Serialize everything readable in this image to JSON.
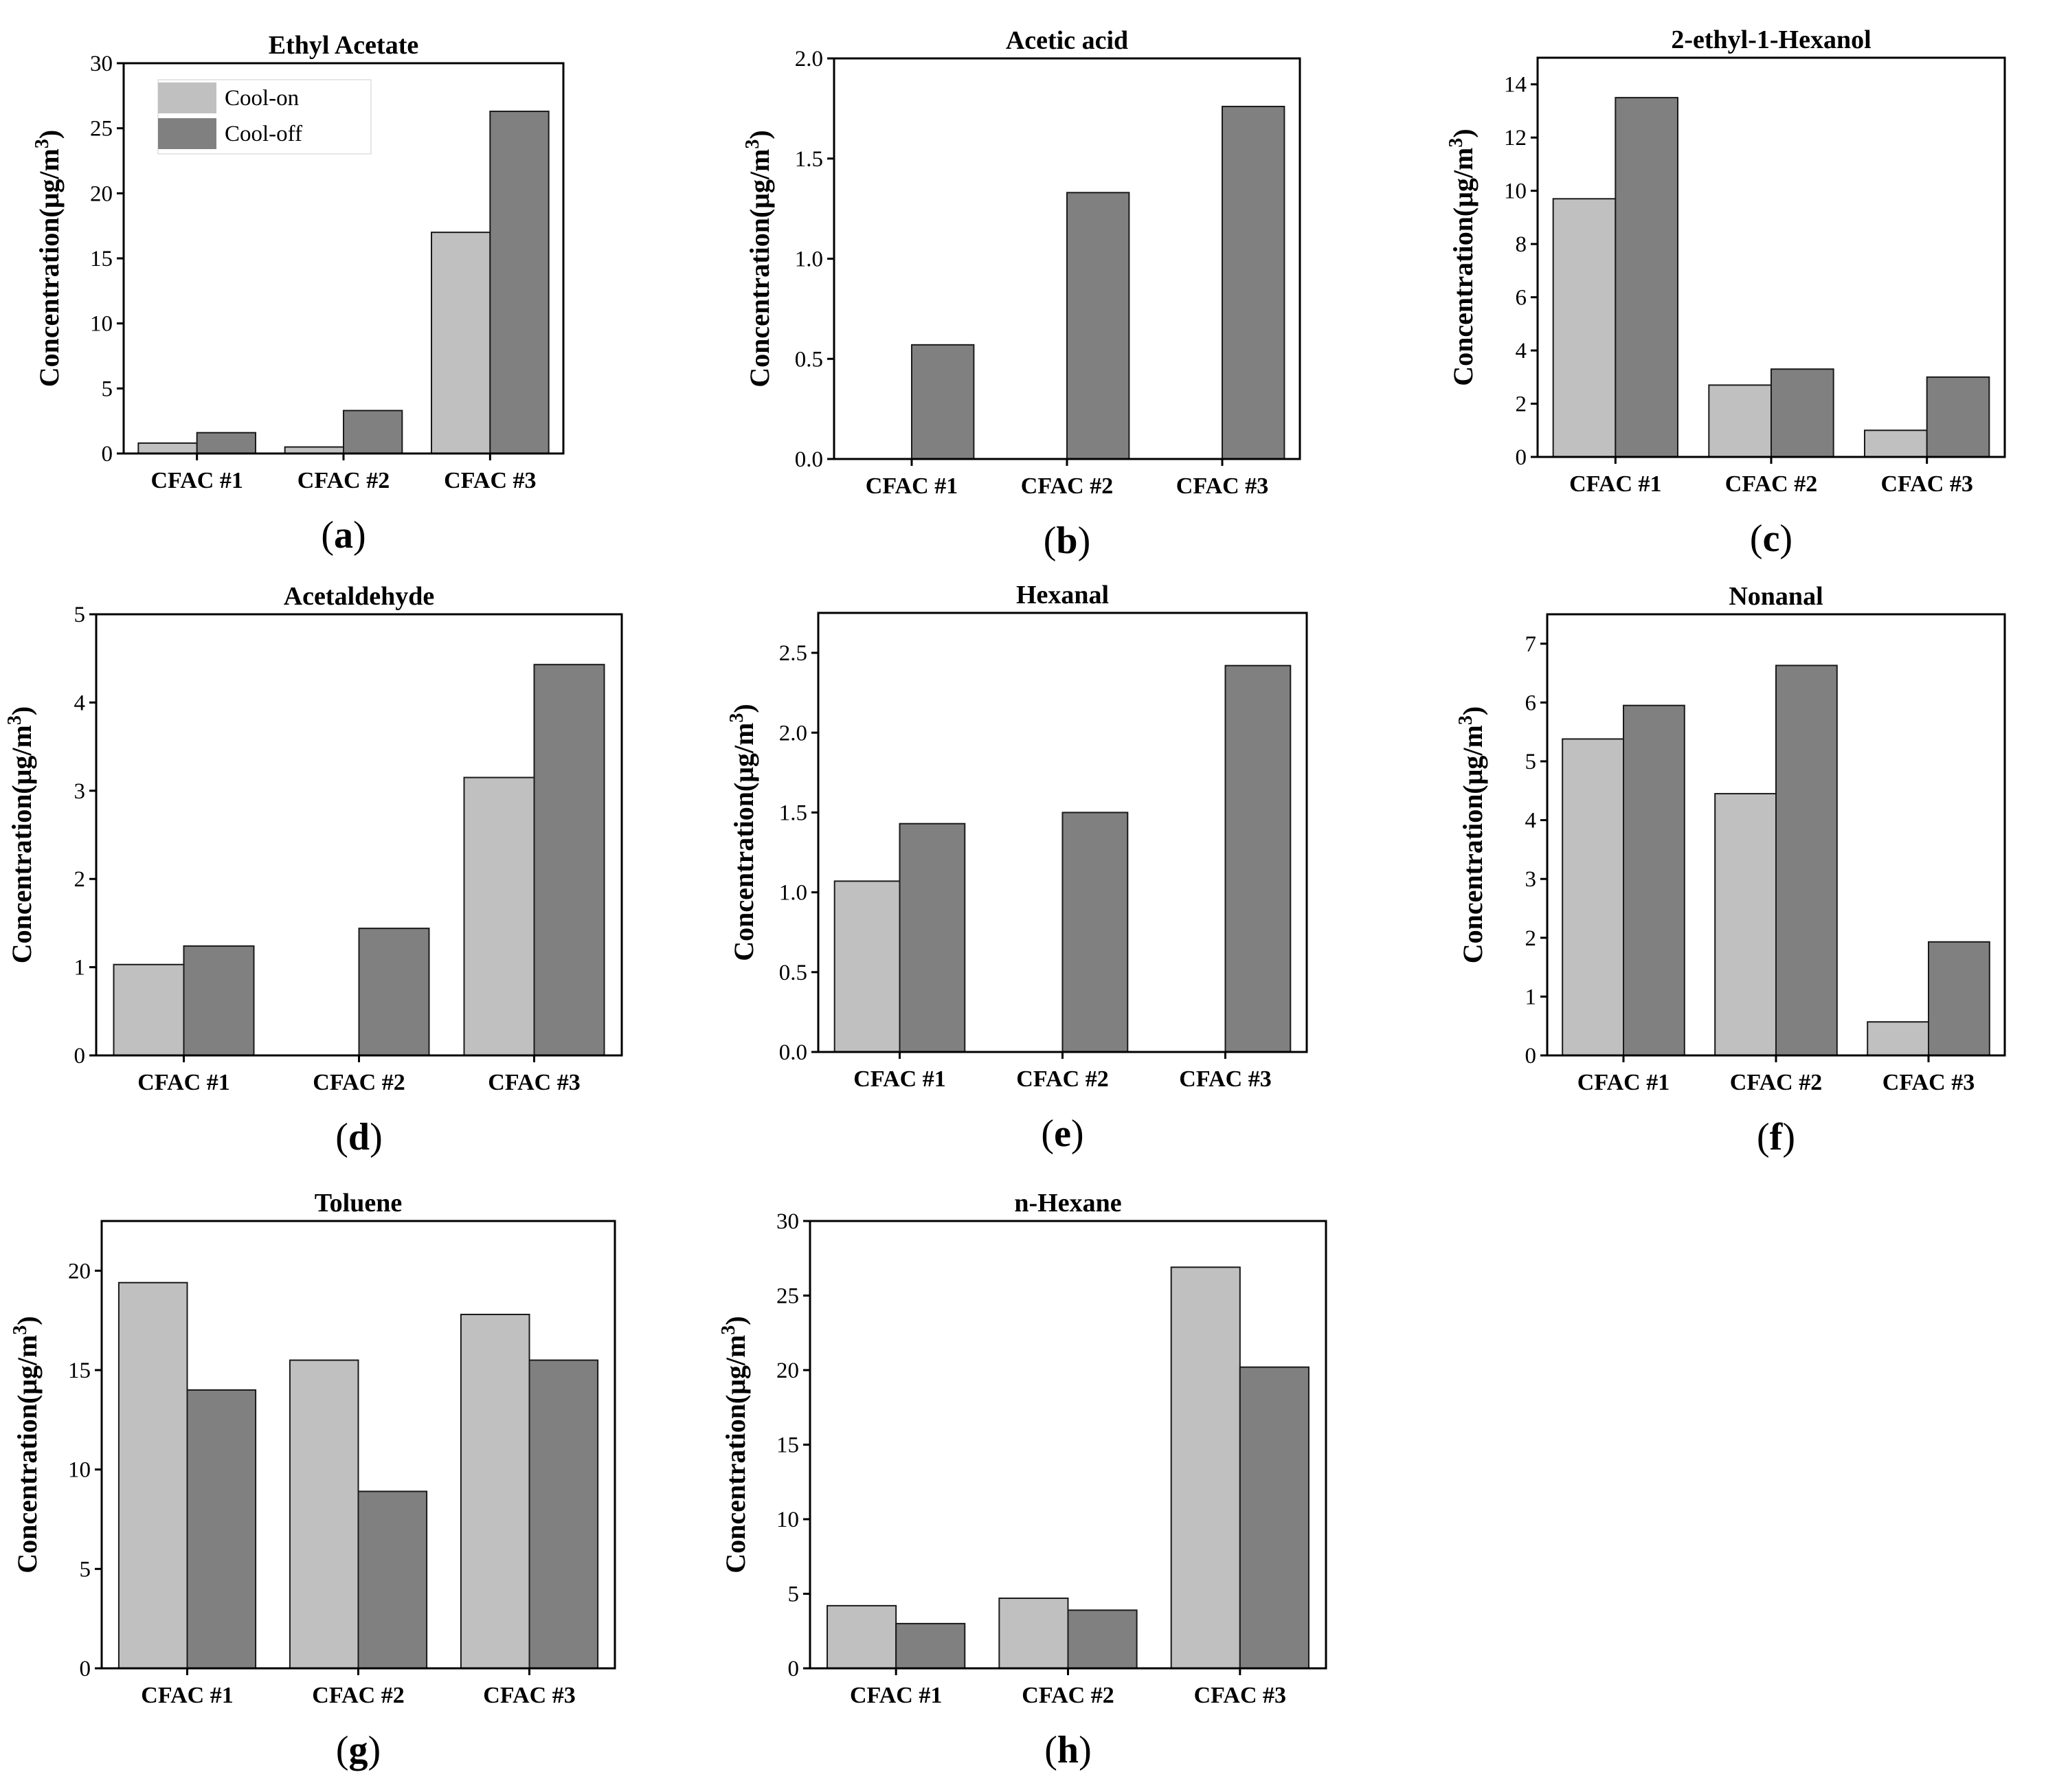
{
  "figure": {
    "categories": [
      "CFAC #1",
      "CFAC #2",
      "CFAC #3"
    ],
    "ylabel_text": "Concentration(μg/m",
    "ylabel_sup": "3",
    "ylabel_close": ")",
    "legend": [
      "Cool-on",
      "Cool-off"
    ]
  },
  "colors": {
    "cool_on": "#c0c0c0",
    "cool_off": "#808080",
    "axis": "#000000"
  },
  "chart_data": [
    {
      "type": "bar",
      "letter": "(a)",
      "title": "Ethyl Acetate",
      "categories": [
        "CFAC #1",
        "CFAC #2",
        "CFAC #3"
      ],
      "ylim": [
        0,
        30
      ],
      "yticks": [
        0,
        5,
        10,
        15,
        20,
        25,
        30
      ],
      "ytick_labels": [
        "0",
        "5",
        "10",
        "15",
        "20",
        "25",
        "30"
      ],
      "ylabel": "Concentration(μg/m3)",
      "legend": "top-left",
      "series": [
        {
          "name": "Cool-on",
          "values": [
            0.8,
            0.5,
            17.0
          ]
        },
        {
          "name": "Cool-off",
          "values": [
            1.6,
            3.3,
            26.3
          ]
        }
      ]
    },
    {
      "type": "bar",
      "letter": "(b)",
      "title": "Acetic acid",
      "categories": [
        "CFAC #1",
        "CFAC #2",
        "CFAC #3"
      ],
      "ylim": [
        0,
        2.0
      ],
      "yticks": [
        0,
        0.5,
        1.0,
        1.5,
        2.0
      ],
      "ytick_labels": [
        "0.0",
        "0.5",
        "1.0",
        "1.5",
        "2.0"
      ],
      "ylabel": "Concentration(μg/m3)",
      "series": [
        {
          "name": "Cool-on",
          "values": [
            0,
            0,
            0
          ]
        },
        {
          "name": "Cool-off",
          "values": [
            0.57,
            1.33,
            1.76
          ]
        }
      ]
    },
    {
      "type": "bar",
      "letter": "(c)",
      "title": "2-ethyl-1-Hexanol",
      "categories": [
        "CFAC #1",
        "CFAC #2",
        "CFAC #3"
      ],
      "ylim": [
        0,
        15
      ],
      "yticks": [
        0,
        2,
        4,
        6,
        8,
        10,
        12,
        14
      ],
      "ytick_labels": [
        "0",
        "2",
        "4",
        "6",
        "8",
        "10",
        "12",
        "14"
      ],
      "ylabel": "Concentration(μg/m3)",
      "series": [
        {
          "name": "Cool-on",
          "values": [
            9.7,
            2.7,
            1.0
          ]
        },
        {
          "name": "Cool-off",
          "values": [
            13.5,
            3.3,
            3.0
          ]
        }
      ]
    },
    {
      "type": "bar",
      "letter": "(d)",
      "title": "Acetaldehyde",
      "categories": [
        "CFAC #1",
        "CFAC #2",
        "CFAC #3"
      ],
      "ylim": [
        0,
        5
      ],
      "yticks": [
        0,
        1,
        2,
        3,
        4,
        5
      ],
      "ytick_labels": [
        "0",
        "1",
        "2",
        "3",
        "4",
        "5"
      ],
      "ylabel": "Concentration(μg/m3)",
      "series": [
        {
          "name": "Cool-on",
          "values": [
            1.03,
            0,
            3.15
          ]
        },
        {
          "name": "Cool-off",
          "values": [
            1.24,
            1.44,
            4.43
          ]
        }
      ]
    },
    {
      "type": "bar",
      "letter": "(e)",
      "title": "Hexanal",
      "categories": [
        "CFAC #1",
        "CFAC #2",
        "CFAC #3"
      ],
      "ylim": [
        0,
        2.75
      ],
      "yticks": [
        0,
        0.5,
        1.0,
        1.5,
        2.0,
        2.5
      ],
      "ytick_labels": [
        "0.0",
        "0.5",
        "1.0",
        "1.5",
        "2.0",
        "2.5"
      ],
      "ylabel": "Concentration(μg/m3)",
      "series": [
        {
          "name": "Cool-on",
          "values": [
            1.07,
            0,
            0
          ]
        },
        {
          "name": "Cool-off",
          "values": [
            1.43,
            1.5,
            2.42
          ]
        }
      ]
    },
    {
      "type": "bar",
      "letter": "(f)",
      "title": "Nonanal",
      "categories": [
        "CFAC #1",
        "CFAC #2",
        "CFAC #3"
      ],
      "ylim": [
        0,
        7.5
      ],
      "yticks": [
        0,
        1,
        2,
        3,
        4,
        5,
        6,
        7
      ],
      "ytick_labels": [
        "0",
        "1",
        "2",
        "3",
        "4",
        "5",
        "6",
        "7"
      ],
      "ylabel": "Concentration(μg/m3)",
      "series": [
        {
          "name": "Cool-on",
          "values": [
            5.38,
            4.45,
            0.57
          ]
        },
        {
          "name": "Cool-off",
          "values": [
            5.95,
            6.63,
            1.93
          ]
        }
      ]
    },
    {
      "type": "bar",
      "letter": "(g)",
      "title": "Toluene",
      "categories": [
        "CFAC #1",
        "CFAC #2",
        "CFAC #3"
      ],
      "ylim": [
        0,
        22.5
      ],
      "yticks": [
        0,
        5,
        10,
        15,
        20
      ],
      "ytick_labels": [
        "0",
        "5",
        "10",
        "15",
        "20"
      ],
      "ylabel": "Concentration(μg/m3)",
      "series": [
        {
          "name": "Cool-on",
          "values": [
            19.4,
            15.5,
            17.8
          ]
        },
        {
          "name": "Cool-off",
          "values": [
            14.0,
            8.9,
            15.5
          ]
        }
      ]
    },
    {
      "type": "bar",
      "letter": "(h)",
      "title": "n-Hexane",
      "categories": [
        "CFAC #1",
        "CFAC #2",
        "CFAC #3"
      ],
      "ylim": [
        0,
        30
      ],
      "yticks": [
        0,
        5,
        10,
        15,
        20,
        25,
        30
      ],
      "ytick_labels": [
        "0",
        "5",
        "10",
        "15",
        "20",
        "25",
        "30"
      ],
      "ylabel": "Concentration(μg/m3)",
      "series": [
        {
          "name": "Cool-on",
          "values": [
            4.2,
            4.7,
            26.9
          ]
        },
        {
          "name": "Cool-off",
          "values": [
            3.0,
            3.9,
            20.2
          ]
        }
      ]
    }
  ]
}
